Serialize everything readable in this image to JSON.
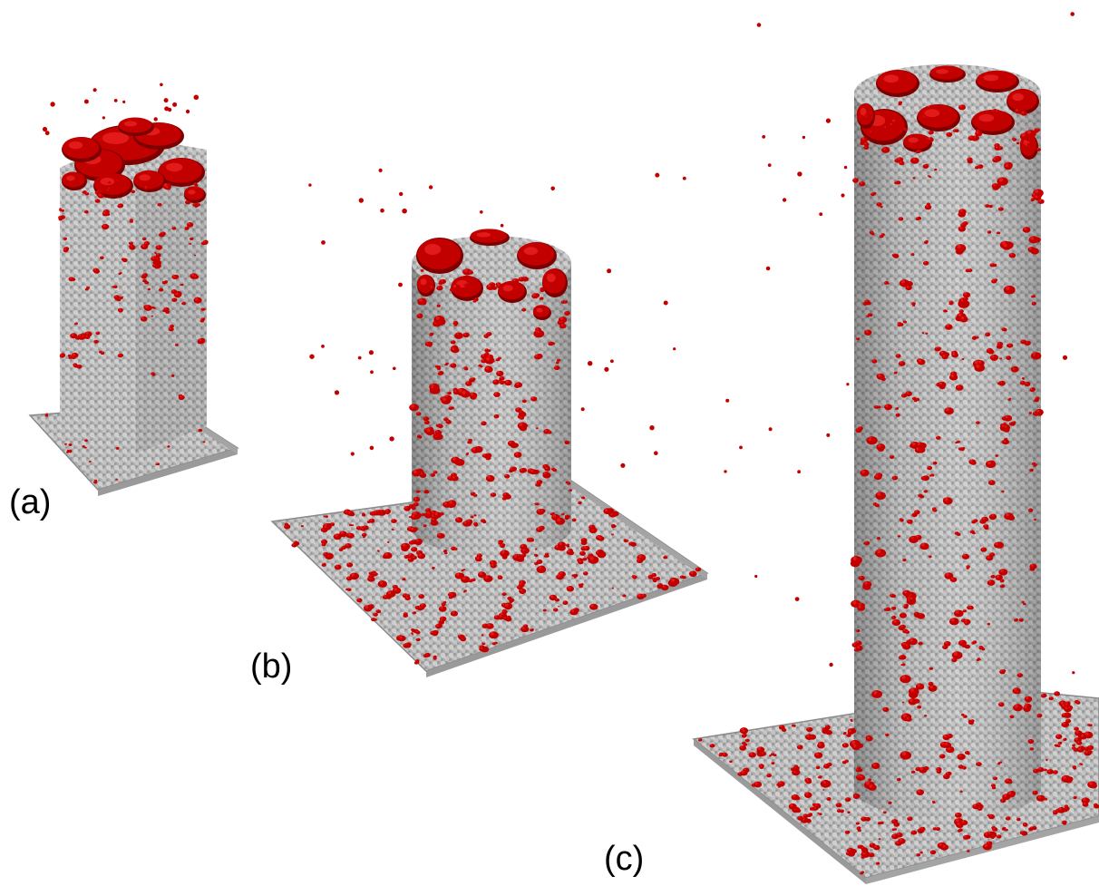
{
  "figure": {
    "panels": [
      {
        "label": "(a)"
      },
      {
        "label": "(b)"
      },
      {
        "label": "(c)"
      }
    ],
    "colors": {
      "background": "#ffffff",
      "substrate_particle": "#b4b4b4",
      "substrate_shadow": "#8a8a8a",
      "substrate_highlight": "#d6d6d6",
      "adsorbed_particle": "#c20000",
      "adsorbed_highlight": "#e21a1a",
      "adsorbed_shadow": "#7c0000"
    }
  }
}
